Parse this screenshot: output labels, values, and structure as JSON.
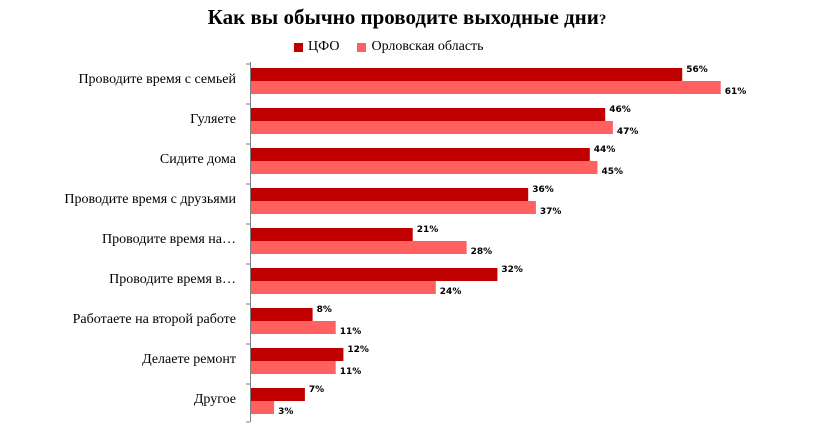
{
  "chart_data": {
    "type": "bar",
    "orientation": "horizontal",
    "title_main": "Как вы обычно проводите выходные дни",
    "title_suffix": "?",
    "categories": [
      "Проводите время с семьей",
      "Гуляете",
      "Сидите дома",
      "Проводите время с друзьями",
      "Проводите время на…",
      "Проводите время в…",
      "Работаете на второй работе",
      "Делаете ремонт",
      "Другое"
    ],
    "series": [
      {
        "name": "ЦФО",
        "color": "#C00000",
        "values": [
          56,
          46,
          44,
          36,
          21,
          32,
          8,
          12,
          7
        ]
      },
      {
        "name": "Орловская область",
        "color": "#FF6161",
        "values": [
          61,
          47,
          45,
          37,
          28,
          24,
          11,
          11,
          3
        ]
      }
    ],
    "value_suffix": "%",
    "xlim": [
      0,
      100
    ],
    "grid": false,
    "legend_position": "top"
  }
}
